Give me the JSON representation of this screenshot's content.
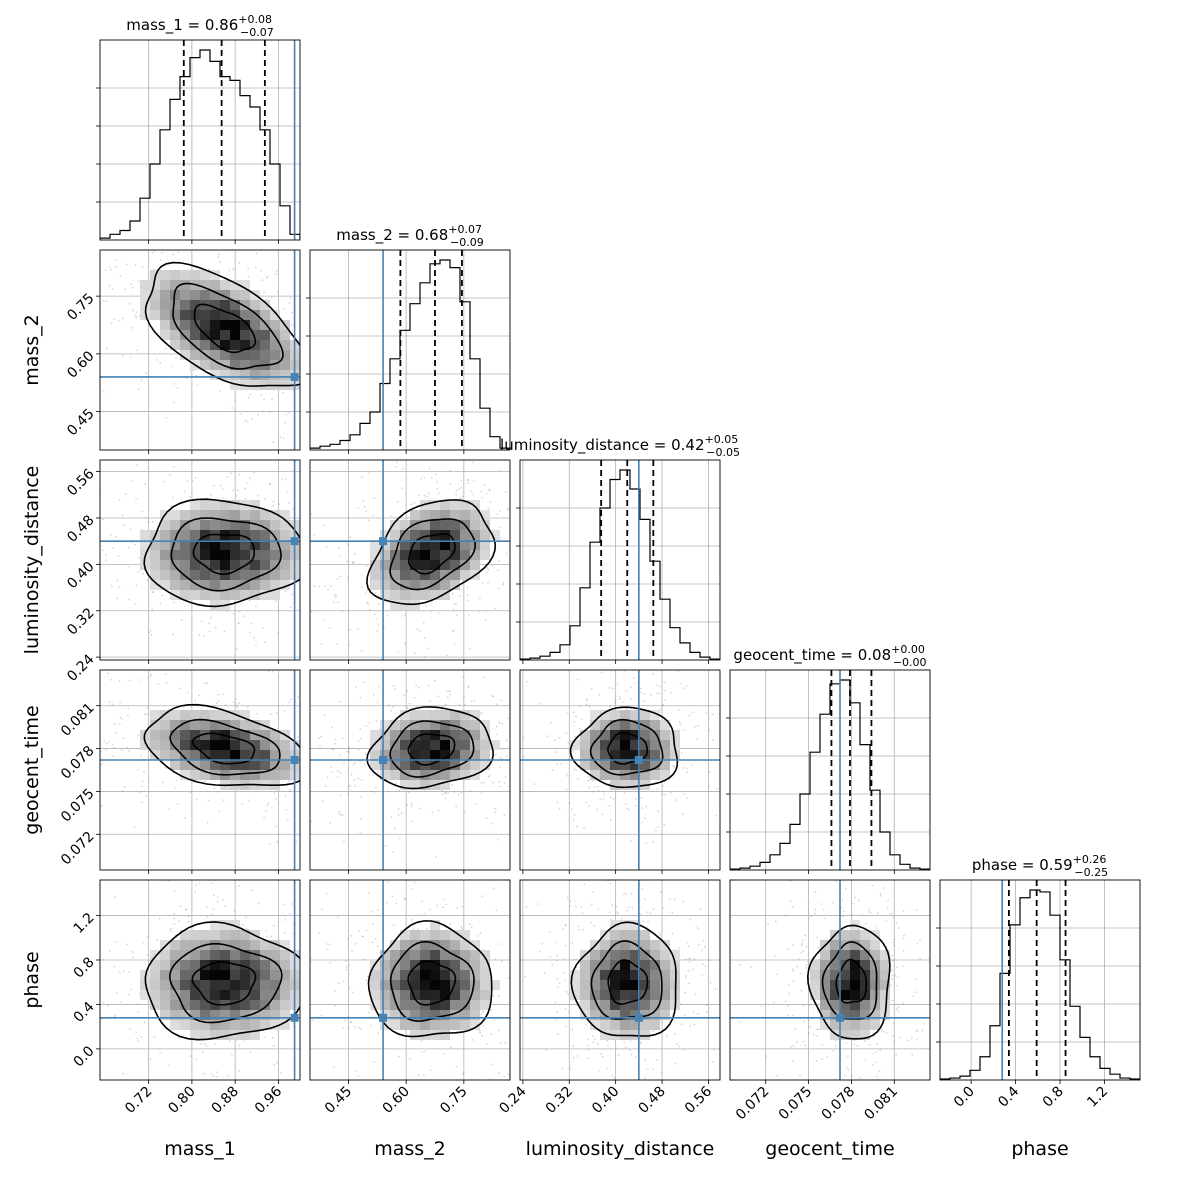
{
  "chart_data": {
    "type": "corner",
    "parameters": [
      "mass_1",
      "mass_2",
      "luminosity_distance",
      "geocent_time",
      "phase"
    ],
    "axis_labels": [
      "mass_1",
      "mass_2",
      "luminosity_distance",
      "geocent_time",
      "phase"
    ],
    "ranges": [
      [
        0.63,
        1.0
      ],
      [
        0.35,
        0.87
      ],
      [
        0.235,
        0.58
      ],
      [
        0.0695,
        0.0835
      ],
      [
        -0.28,
        1.52
      ]
    ],
    "ticks": [
      [
        0.72,
        0.8,
        0.88,
        0.96
      ],
      [
        0.45,
        0.6,
        0.75
      ],
      [
        0.24,
        0.32,
        0.4,
        0.48,
        0.56
      ],
      [
        0.072,
        0.075,
        0.078,
        0.081
      ],
      [
        0.0,
        0.4,
        0.8,
        1.2
      ]
    ],
    "tick_labels": [
      [
        "0.72",
        "0.80",
        "0.88",
        "0.96"
      ],
      [
        "0.45",
        "0.60",
        "0.75"
      ],
      [
        "0.24",
        "0.32",
        "0.40",
        "0.48",
        "0.56"
      ],
      [
        "0.072",
        "0.075",
        "0.078",
        "0.081"
      ],
      [
        "0.0",
        "0.4",
        "0.8",
        "1.2"
      ]
    ],
    "truths": [
      0.99,
      0.54,
      0.44,
      0.0772,
      0.28
    ],
    "truth_color": "#4682b4",
    "titles": [
      {
        "name": "mass_1",
        "eq": " = 0.86",
        "sup": "+0.08",
        "sub": "−0.07"
      },
      {
        "name": "mass_2",
        "eq": " = 0.68",
        "sup": "+0.07",
        "sub": "−0.09"
      },
      {
        "name": "luminosity_distance",
        "eq": " = 0.42",
        "sup": "+0.05",
        "sub": "−0.05"
      },
      {
        "name": "geocent_time",
        "eq": " = 0.08",
        "sup": "+0.00",
        "sub": "−0.00"
      },
      {
        "name": "phase",
        "eq": " = 0.59",
        "sup": "+0.26",
        "sub": "−0.25"
      }
    ],
    "quantiles": [
      [
        0.785,
        0.855,
        0.935
      ],
      [
        0.585,
        0.675,
        0.745
      ],
      [
        0.375,
        0.42,
        0.465
      ],
      [
        0.0766,
        0.0779,
        0.0794
      ],
      [
        0.34,
        0.59,
        0.85
      ]
    ],
    "histograms": [
      [
        1,
        3,
        5,
        10,
        22,
        40,
        58,
        74,
        86,
        96,
        100,
        94,
        86,
        84,
        76,
        70,
        58,
        40,
        18,
        3
      ],
      [
        1,
        2,
        3,
        5,
        8,
        14,
        20,
        35,
        48,
        63,
        77,
        88,
        98,
        100,
        96,
        78,
        48,
        22,
        7,
        1
      ],
      [
        0.5,
        1,
        2,
        4,
        8,
        18,
        38,
        62,
        80,
        95,
        100,
        90,
        74,
        52,
        32,
        17,
        9,
        4,
        1.5,
        0.5
      ],
      [
        0.5,
        1,
        2,
        4,
        8,
        14,
        24,
        40,
        62,
        82,
        98,
        100,
        88,
        66,
        42,
        20,
        8,
        3,
        1,
        0.5
      ],
      [
        0.5,
        1,
        2,
        5,
        12,
        28,
        55,
        80,
        94,
        98,
        97,
        85,
        62,
        38,
        22,
        12,
        6,
        3,
        1,
        0.5
      ]
    ],
    "grid": true,
    "density_style": "contours with 2d histogram and scatter points"
  }
}
